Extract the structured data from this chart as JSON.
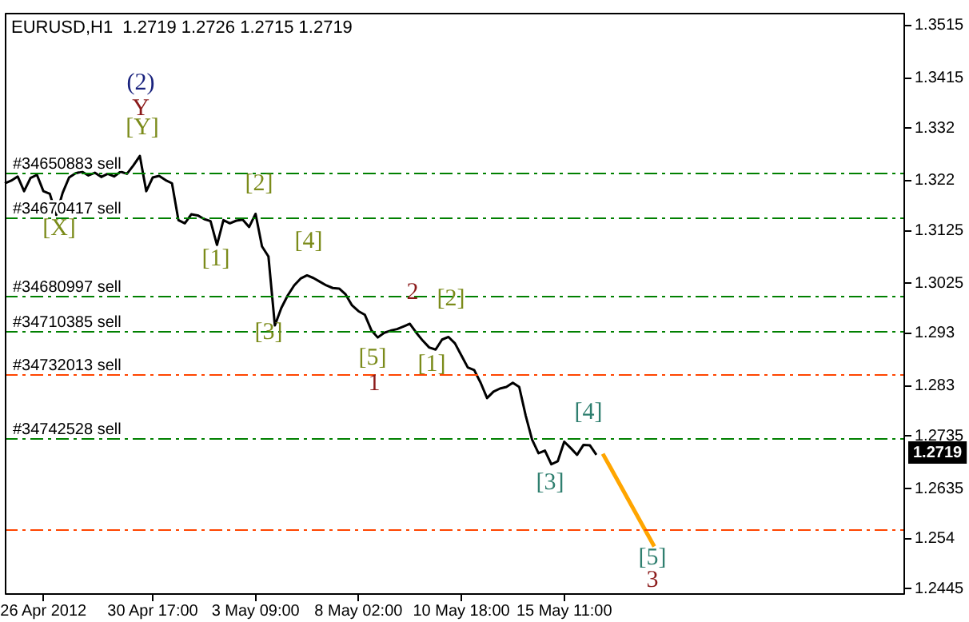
{
  "chart_data": {
    "type": "line",
    "title": "EURUSD,H1  1.2719 1.2726 1.2715 1.2719",
    "categories": [
      null,
      null,
      null,
      null,
      null,
      null,
      "26 Apr 2012",
      null,
      null,
      null,
      null,
      null,
      null,
      null,
      null,
      null,
      null,
      null,
      null,
      null,
      null,
      null,
      null,
      "30 Apr 17:00",
      null,
      null,
      null,
      null,
      null,
      null,
      null,
      null,
      null,
      null,
      null,
      null,
      null,
      null,
      null,
      "3 May 09:00",
      null,
      null,
      null,
      null,
      null,
      null,
      null,
      null,
      null,
      null,
      null,
      null,
      null,
      null,
      null,
      "8 May 02:00",
      null,
      null,
      null,
      null,
      null,
      null,
      null,
      null,
      null,
      null,
      null,
      null,
      null,
      null,
      null,
      "10 May 18:00",
      null,
      null,
      null,
      null,
      null,
      null,
      null,
      null,
      null,
      null,
      null,
      null,
      null,
      null,
      null,
      "15 May 11:00",
      null,
      null,
      null,
      null,
      null,
      null,
      null,
      null,
      null,
      null,
      null,
      null,
      null,
      null,
      null,
      null,
      null,
      null,
      null,
      null,
      null,
      null,
      null,
      null,
      null,
      null,
      null,
      null,
      null,
      null,
      null,
      null,
      null,
      null,
      null,
      null,
      null,
      null,
      null,
      null,
      null,
      null,
      null,
      null,
      null,
      null,
      null,
      null,
      null,
      null,
      null,
      null,
      null
    ],
    "series": [
      {
        "type": "line",
        "color": "#000000",
        "values": [
          1.3215,
          1.322,
          1.3228,
          1.32,
          1.3225,
          1.3231,
          1.32,
          1.3195,
          1.3155,
          1.3197,
          1.3226,
          1.3234,
          1.3237,
          1.323,
          1.3235,
          1.3227,
          1.3233,
          1.3228,
          1.3237,
          1.3233,
          1.3249,
          1.3267,
          1.32,
          1.3226,
          1.3229,
          1.3221,
          1.3215,
          1.3145,
          1.3139,
          1.3156,
          1.3154,
          1.3147,
          1.3143,
          1.3098,
          1.3145,
          1.3139,
          1.3144,
          1.3146,
          1.3132,
          1.3157,
          1.3095,
          1.3076,
          1.2945,
          1.2978,
          1.3002,
          1.3021,
          1.3034,
          1.304,
          1.3035,
          1.3028,
          1.3021,
          1.3016,
          1.3015,
          1.3004,
          1.2983,
          1.2972,
          1.2965,
          1.2936,
          1.2922,
          1.2931,
          1.2935,
          1.2938,
          1.2943,
          1.2948,
          1.2931,
          1.2916,
          1.2903,
          1.2899,
          1.2918,
          1.2923,
          1.2911,
          1.2888,
          1.2865,
          1.286,
          1.2836,
          1.2807,
          1.2819,
          1.2825,
          1.2828,
          1.2836,
          1.2828,
          1.2774,
          1.2728,
          1.2702,
          1.2707,
          1.2681,
          1.2687,
          1.2724,
          1.2712,
          1.2699,
          1.2718,
          1.2717,
          1.2699,
          null,
          null,
          null,
          null,
          null,
          null,
          null,
          null,
          null,
          null,
          null,
          null,
          null,
          null,
          null,
          null,
          null,
          null,
          null,
          null,
          null,
          null,
          null,
          null,
          null,
          null,
          null,
          null,
          null,
          null,
          null,
          null,
          null,
          null,
          null,
          null,
          null,
          null,
          null,
          null,
          null,
          null,
          null,
          null,
          null,
          null,
          null,
          null
        ]
      },
      {
        "type": "line",
        "color": "#ffa500",
        "values": [
          null,
          null,
          null,
          null,
          null,
          null,
          null,
          null,
          null,
          null,
          null,
          null,
          null,
          null,
          null,
          null,
          null,
          null,
          null,
          null,
          null,
          null,
          null,
          null,
          null,
          null,
          null,
          null,
          null,
          null,
          null,
          null,
          null,
          null,
          null,
          null,
          null,
          null,
          null,
          null,
          null,
          null,
          null,
          null,
          null,
          null,
          null,
          null,
          null,
          null,
          null,
          null,
          null,
          null,
          null,
          null,
          null,
          null,
          null,
          null,
          null,
          null,
          null,
          null,
          null,
          null,
          null,
          null,
          null,
          null,
          null,
          null,
          null,
          null,
          null,
          null,
          null,
          null,
          null,
          null,
          null,
          null,
          null,
          null,
          null,
          null,
          null,
          null,
          null,
          null,
          null,
          null,
          null,
          1.2701,
          1.2679,
          1.2657,
          1.2635,
          1.2613,
          1.2591,
          1.2569,
          1.2547,
          1.2525,
          null,
          null,
          null,
          null,
          null,
          null,
          null,
          null,
          null,
          null,
          null,
          null,
          null,
          null,
          null,
          null,
          null,
          null,
          null,
          null,
          null,
          null,
          null,
          null,
          null,
          null,
          null,
          null,
          null,
          null,
          null,
          null,
          null,
          null,
          null,
          null,
          null,
          null,
          null
        ]
      }
    ],
    "ylim": [
      1.2433,
      1.3539
    ],
    "yticks": [
      1.2445,
      1.254,
      1.2635,
      1.2735,
      1.283,
      1.293,
      1.3025,
      1.3125,
      1.322,
      1.332,
      1.3415,
      1.3515
    ],
    "grid": false,
    "legend": false,
    "marker": "none",
    "ref_lines": [
      {
        "axis": "y",
        "value": 1.3236,
        "label": "#34650883 sell",
        "color": "#008000",
        "line_style": "dashed"
      },
      {
        "axis": "y",
        "value": 1.3149,
        "label": "#34670417 sell",
        "color": "#008000",
        "line_style": "dashed"
      },
      {
        "axis": "y",
        "value": 1.3002,
        "label": "#34680997 sell",
        "color": "#008000",
        "line_style": "dashed"
      },
      {
        "axis": "y",
        "value": 1.2933,
        "label": "#34710385 sell",
        "color": "#008000",
        "line_style": "dashed"
      },
      {
        "axis": "y",
        "value": 1.2852,
        "label": "#34732013 sell",
        "color": "#ff4500",
        "line_style": "dashed"
      },
      {
        "axis": "y",
        "value": 1.2732,
        "label": "#34742528 sell",
        "color": "#008000",
        "line_style": "dashed"
      },
      {
        "axis": "y",
        "value": 1.2558,
        "color": "#ff4500",
        "line_style": "dashed"
      }
    ],
    "annotations": [
      "(2)",
      "Y",
      "[Y]",
      "[X]",
      "[1]",
      "[2]",
      "[4]",
      "[3]",
      "2",
      "[2]",
      "[5]",
      "1",
      "[1]",
      "[4]",
      "[3]",
      "[5]",
      "3",
      "1.2719"
    ]
  }
}
